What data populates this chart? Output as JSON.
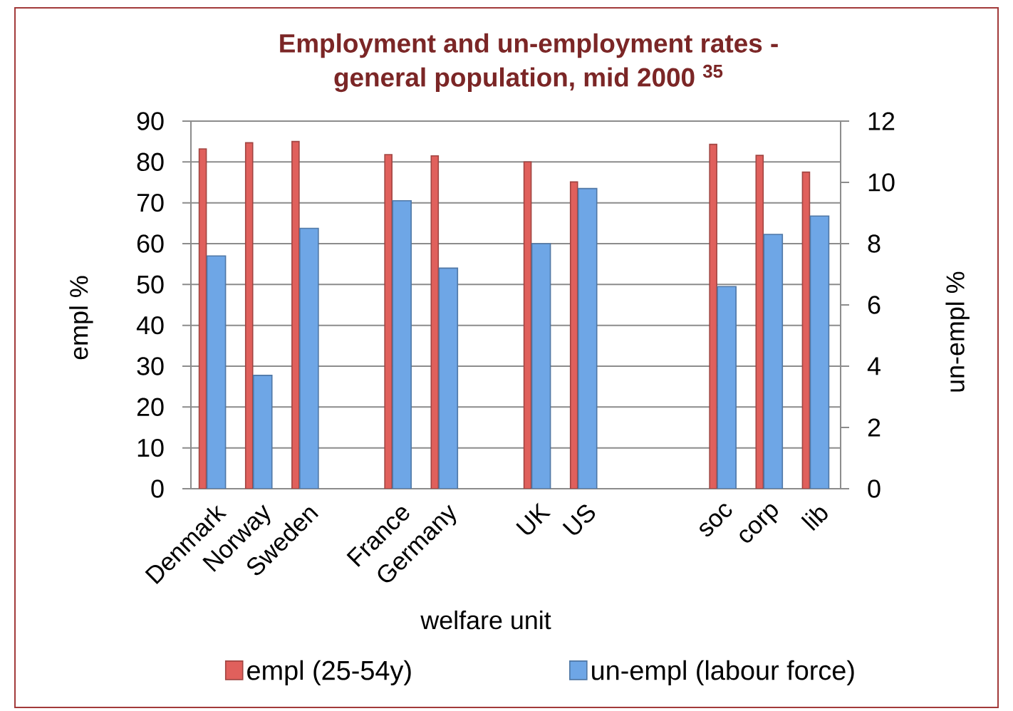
{
  "chart_data": {
    "type": "bar",
    "title": "Employment and un-employment rates - general population, mid 2000 $^{35}$",
    "xlabel": "welfare unit",
    "ylabel": "empl %",
    "y2label": "un-empl %",
    "categories": [
      "Denmark",
      "Norway",
      "Sweden",
      null,
      "France",
      "Germany",
      null,
      "UK",
      "US",
      null,
      null,
      "soc",
      "corp",
      "lib"
    ],
    "series": [
      {
        "name": "empl (25-54y)",
        "color": "#e0605c",
        "values": [
          83.2,
          84.7,
          85.0,
          null,
          81.8,
          81.5,
          null,
          80.0,
          75.1,
          null,
          null,
          84.3,
          81.6,
          77.5
        ]
      },
      {
        "name": "un-empl (labour force)",
        "color": "#6ea6e6",
        "axis": "y2",
        "values": [
          7.6,
          3.7,
          8.5,
          null,
          9.4,
          7.2,
          null,
          8.0,
          9.8,
          null,
          null,
          6.6,
          8.3,
          8.9
        ]
      }
    ],
    "ylim": [
      0,
      90
    ],
    "yticks": [
      0,
      10,
      20,
      30,
      40,
      50,
      60,
      70,
      80,
      90
    ],
    "y2lim": [
      0,
      12
    ],
    "y2ticks": [
      0,
      2,
      4,
      6,
      8,
      10,
      12
    ],
    "grid": "y",
    "legend": "bottom"
  }
}
